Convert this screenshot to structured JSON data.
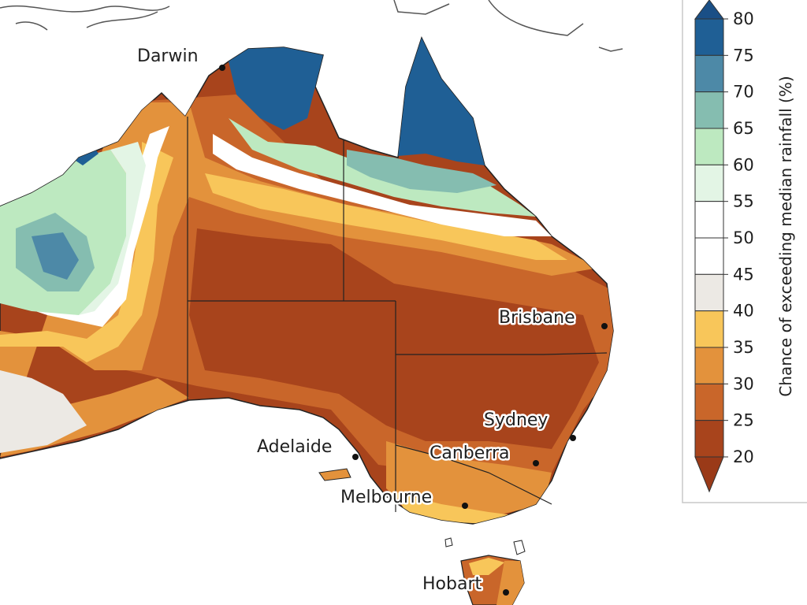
{
  "map": {
    "cities": [
      {
        "id": "darwin",
        "name": "Darwin"
      },
      {
        "id": "brisbane",
        "name": "Brisbane"
      },
      {
        "id": "sydney",
        "name": "Sydney"
      },
      {
        "id": "canberra",
        "name": "Canberra"
      },
      {
        "id": "adelaide",
        "name": "Adelaide"
      },
      {
        "id": "melbourne",
        "name": "Melbourne"
      },
      {
        "id": "hobart",
        "name": "Hobart"
      }
    ]
  },
  "legend": {
    "title": "Chance of exceeding median rainfall (%)",
    "ticks": [
      "80",
      "75",
      "70",
      "65",
      "60",
      "55",
      "50",
      "45",
      "40",
      "35",
      "30",
      "25",
      "20"
    ],
    "bands": [
      {
        "range": "75-80",
        "color": "#1f5f95"
      },
      {
        "range": "70-75",
        "color": "#4d89a7"
      },
      {
        "range": "65-70",
        "color": "#85bdb0"
      },
      {
        "range": "60-65",
        "color": "#bde9c0"
      },
      {
        "range": "55-60",
        "color": "#e3f5e5"
      },
      {
        "range": "50-55",
        "color": "#ffffff"
      },
      {
        "range": "45-50",
        "color": "#ffffff"
      },
      {
        "range": "40-45",
        "color": "#ece9e4"
      },
      {
        "range": "35-40",
        "color": "#f8c65a"
      },
      {
        "range": "30-35",
        "color": "#e3923c"
      },
      {
        "range": "25-30",
        "color": "#c9662a"
      },
      {
        "range": "20-25",
        "color": "#a8441c"
      }
    ],
    "extend_low_color": "#9a3a18",
    "extend_high_color": "#1a4f86"
  }
}
